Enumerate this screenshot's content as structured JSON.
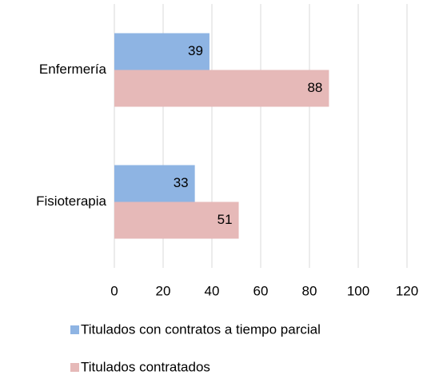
{
  "chart_data": {
    "type": "bar",
    "orientation": "horizontal",
    "categories": [
      "Enfermería",
      "Fisioterapia"
    ],
    "series": [
      {
        "name": "Titulados con contratos a tiempo parcial",
        "color": "#8eb4e3",
        "values": [
          39,
          33
        ]
      },
      {
        "name": "Titulados contratados",
        "color": "#e6b9b8",
        "values": [
          88,
          51
        ]
      }
    ],
    "xlim": [
      0,
      120
    ],
    "xticks": [
      0,
      20,
      40,
      60,
      80,
      100,
      120
    ],
    "grid": true,
    "legend": "bottom"
  }
}
